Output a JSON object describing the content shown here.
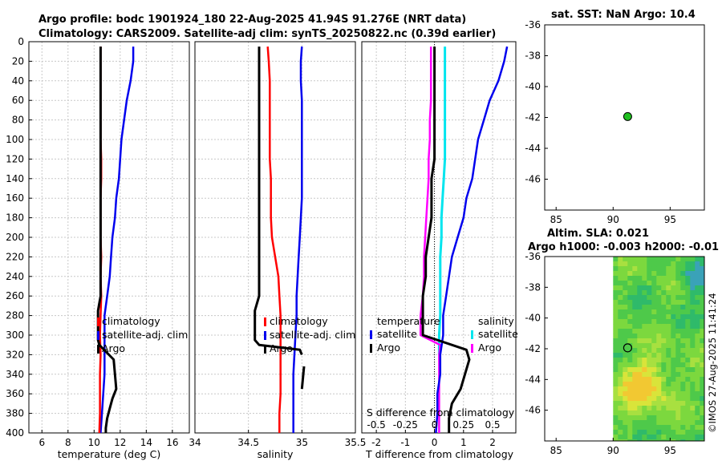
{
  "header": {
    "title_line1": "Argo profile: bodc 1901924_180 22-Aug-2025 41.94S 91.276E (NRT data)",
    "title_line2": "Climatology: CARS2009. Satellite-adj clim: synTS_20250822.nc (0.39d earlier)"
  },
  "colors": {
    "climatology": "#ff0000",
    "satellite": "#0000ee",
    "argo": "#000000",
    "sst_diff": "#ff00ff",
    "sal_diff": "#00e5ee",
    "marker": "#1fbf1f"
  },
  "chart_data": [
    {
      "type": "line",
      "panel": "temperature",
      "xlabel": "temperature (deg C)",
      "ylim": [
        400,
        0
      ],
      "xlim": [
        5,
        17.3
      ],
      "xticks": [
        "6",
        "8",
        "10",
        "12",
        "14",
        "16"
      ],
      "yticks": [
        "0",
        "20",
        "40",
        "60",
        "80",
        "100",
        "120",
        "140",
        "160",
        "180",
        "200",
        "220",
        "240",
        "260",
        "280",
        "300",
        "320",
        "340",
        "360",
        "380",
        "400"
      ],
      "grid": true,
      "legend": [
        "climatology",
        "satellite-adj. clim",
        "Argo"
      ],
      "series": [
        {
          "name": "climatology",
          "x": [
            10.5,
            10.5,
            10.5,
            10.5,
            10.5,
            10.5,
            10.55,
            10.55,
            10.5,
            10.5,
            10.5,
            10.55,
            10.5,
            10.55,
            10.5,
            10.45,
            10.5,
            10.45,
            10.45,
            10.45,
            10.4
          ],
          "y": [
            5,
            20,
            40,
            60,
            80,
            100,
            120,
            140,
            160,
            180,
            200,
            220,
            240,
            260,
            280,
            300,
            320,
            340,
            360,
            380,
            400
          ]
        },
        {
          "name": "satellite-adj. clim",
          "x": [
            13.0,
            13.0,
            12.8,
            12.5,
            12.3,
            12.1,
            12.0,
            11.9,
            11.7,
            11.6,
            11.4,
            11.3,
            11.2,
            11.0,
            10.8,
            10.8,
            10.8,
            10.8,
            10.7,
            10.6,
            10.5
          ],
          "y": [
            5,
            20,
            40,
            60,
            80,
            100,
            120,
            140,
            160,
            180,
            200,
            220,
            240,
            260,
            280,
            300,
            320,
            340,
            360,
            380,
            400
          ]
        },
        {
          "name": "Argo",
          "x": [
            10.5,
            10.5,
            10.5,
            10.5,
            10.5,
            10.5,
            10.5,
            10.5,
            10.5,
            10.5,
            10.5,
            10.5,
            10.5,
            10.5,
            10.3,
            10.3,
            10.4,
            11.5,
            11.6,
            11.7,
            11.4,
            11.2,
            11.0,
            10.9,
            10.9
          ],
          "y": [
            5,
            20,
            40,
            60,
            80,
            100,
            120,
            140,
            160,
            180,
            200,
            220,
            240,
            260,
            275,
            305,
            310,
            325,
            340,
            355,
            365,
            375,
            385,
            395,
            400
          ]
        }
      ]
    },
    {
      "type": "line",
      "panel": "salinity",
      "xlabel": "salinity",
      "ylim": [
        400,
        0
      ],
      "xlim": [
        34,
        35.5
      ],
      "xticks": [
        "34",
        "34.5",
        "35",
        "35.5"
      ],
      "grid": true,
      "legend": [
        "climatology",
        "satellite-adj. clim",
        "Argo"
      ],
      "series": [
        {
          "name": "climatology",
          "x": [
            34.68,
            34.69,
            34.7,
            34.7,
            34.7,
            34.7,
            34.7,
            34.71,
            34.71,
            34.71,
            34.72,
            34.75,
            34.78,
            34.79,
            34.8,
            34.8,
            34.8,
            34.8,
            34.8,
            34.79,
            34.79
          ],
          "y": [
            5,
            20,
            40,
            60,
            80,
            100,
            120,
            140,
            160,
            180,
            200,
            220,
            240,
            260,
            280,
            300,
            320,
            340,
            360,
            380,
            400
          ]
        },
        {
          "name": "satellite-adj. clim",
          "x": [
            35.0,
            34.99,
            34.99,
            35.0,
            35.0,
            35.0,
            35.0,
            35.0,
            35.0,
            34.99,
            34.98,
            34.97,
            34.96,
            34.95,
            34.95,
            34.94,
            34.93,
            34.92,
            34.92,
            34.92,
            34.92
          ],
          "y": [
            5,
            20,
            40,
            60,
            80,
            100,
            120,
            140,
            160,
            180,
            200,
            220,
            240,
            260,
            280,
            300,
            320,
            340,
            360,
            380,
            400
          ]
        },
        {
          "name": "Argo",
          "x": [
            34.6,
            34.6,
            34.6,
            34.6,
            34.6,
            34.6,
            34.6,
            34.6,
            34.6,
            34.6,
            34.6,
            34.6,
            34.6,
            34.6,
            34.56,
            34.56,
            34.6,
            34.98,
            35.0
          ],
          "y": [
            5,
            20,
            40,
            60,
            80,
            100,
            120,
            140,
            160,
            180,
            200,
            220,
            240,
            260,
            275,
            305,
            310,
            315,
            320
          ]
        }
      ]
    },
    {
      "type": "line",
      "panel": "T difference",
      "xlabel": "T difference from climatology",
      "secondary_xlabel": "S difference from climatology",
      "ylim": [
        400,
        0
      ],
      "xlim": [
        -2.5,
        2.8
      ],
      "xticks": [
        "-2",
        "-1",
        "0",
        "1",
        "2"
      ],
      "secondary_xticks": [
        "-0.5",
        "-0.25",
        "0",
        "0.25",
        "0.5"
      ],
      "grid": true,
      "legend_titles": [
        "temperature",
        "salinity"
      ],
      "legend": [
        "satellite",
        "Argo",
        "satellite",
        "Argo"
      ],
      "series": [
        {
          "name": "temperature satellite",
          "x": [
            2.5,
            2.4,
            2.2,
            1.9,
            1.7,
            1.5,
            1.4,
            1.3,
            1.1,
            1.0,
            0.8,
            0.6,
            0.5,
            0.4,
            0.3,
            0.3,
            0.2,
            0.2,
            0.1,
            0.1,
            0.05
          ],
          "y": [
            5,
            20,
            40,
            60,
            80,
            100,
            120,
            140,
            160,
            180,
            200,
            220,
            240,
            260,
            280,
            300,
            320,
            340,
            360,
            380,
            400
          ]
        },
        {
          "name": "temperature Argo",
          "x": [
            0.0,
            0.0,
            0.0,
            0.0,
            0.0,
            0.0,
            0.0,
            -0.1,
            -0.1,
            -0.1,
            -0.2,
            -0.3,
            -0.3,
            -0.4,
            -0.4,
            -0.4,
            1.1,
            1.2,
            0.9,
            0.6,
            0.5,
            0.5
          ],
          "y": [
            5,
            20,
            40,
            60,
            80,
            100,
            120,
            140,
            160,
            180,
            200,
            220,
            240,
            260,
            280,
            300,
            315,
            325,
            355,
            370,
            385,
            400
          ]
        },
        {
          "name": "salinity satellite",
          "x": [
            0.09,
            0.09,
            0.09,
            0.09,
            0.09,
            0.09,
            0.09,
            0.08,
            0.07,
            0.06,
            0.06,
            0.05,
            0.05,
            0.05,
            0.05,
            0.04,
            0.04
          ],
          "y": [
            5,
            20,
            40,
            60,
            80,
            100,
            120,
            140,
            160,
            180,
            200,
            220,
            240,
            260,
            280,
            300,
            320
          ]
        },
        {
          "name": "salinity Argo",
          "x": [
            -0.03,
            -0.03,
            -0.03,
            -0.03,
            -0.04,
            -0.04,
            -0.05,
            -0.05,
            -0.06,
            -0.07,
            -0.08,
            -0.09,
            -0.09,
            -0.1,
            -0.12,
            -0.12,
            0.05,
            0.04,
            0.04
          ],
          "y": [
            5,
            20,
            40,
            60,
            80,
            100,
            120,
            140,
            160,
            180,
            200,
            220,
            240,
            260,
            280,
            300,
            310,
            320,
            400
          ]
        }
      ]
    },
    {
      "type": "scatter",
      "panel": "sst map",
      "title": "sat. SST: NaN Argo: 10.4",
      "xlim": [
        84,
        98
      ],
      "ylim": [
        -48,
        -36
      ],
      "xticks": [
        "85",
        "90",
        "95"
      ],
      "yticks": [
        "-36",
        "-38",
        "-40",
        "-42",
        "-44",
        "-46"
      ],
      "points": [
        {
          "x": 91.276,
          "y": -41.94
        }
      ]
    },
    {
      "type": "heatmap",
      "panel": "sla map",
      "title_line1": "Altim. SLA: 0.021",
      "title_line2": "Argo h1000: -0.003 h2000: -0.01",
      "xlim": [
        84,
        98
      ],
      "ylim": [
        -48,
        -36
      ],
      "xticks": [
        "85",
        "90",
        "95"
      ],
      "yticks": [
        "-36",
        "-38",
        "-40",
        "-42",
        "-44",
        "-46"
      ],
      "data_lon_start": 90,
      "points": [
        {
          "x": 91.276,
          "y": -41.94
        }
      ]
    }
  ],
  "footer": {
    "timestamp": "©IMOS 27-Aug-2025 11:41:24"
  }
}
